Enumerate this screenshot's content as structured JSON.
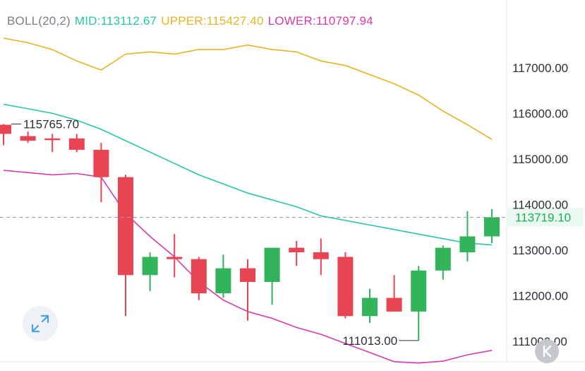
{
  "indicator": {
    "name": "BOLL(20,2)",
    "mid_label": "MID:113112.67",
    "upper_label": "UPPER:115427.40",
    "lower_label": "LOWER:110797.94",
    "colors": {
      "mid": "#26c6a6",
      "upper": "#e6b422",
      "lower": "#d63aad",
      "name": "#7c7f86"
    }
  },
  "icons": {
    "expand": "expand-arrows-icon",
    "kline": "k-chevron-icon"
  },
  "chart_data": {
    "type": "candlestick",
    "ylim": [
      110500,
      118100
    ],
    "y_ticks": [
      {
        "value": 117000,
        "label": "117000.00"
      },
      {
        "value": 116000,
        "label": "116000.00"
      },
      {
        "value": 115000,
        "label": "115000.00"
      },
      {
        "value": 114000,
        "label": "114000.00"
      },
      {
        "value": 113000,
        "label": "113000.00"
      },
      {
        "value": 112000,
        "label": "112000.00"
      },
      {
        "value": 111000,
        "label": "111000.00"
      }
    ],
    "current_price": {
      "value": 113719.1,
      "label": "113719.10",
      "color": "#16b05a"
    },
    "max_annotation": {
      "value": 115765.7,
      "label": "115765.70"
    },
    "min_annotation": {
      "value": 111013.0,
      "label": "111013.00"
    },
    "up_color": "#31b45a",
    "down_color": "#e84452",
    "candles": [
      {
        "o": 115750,
        "h": 115766,
        "c": 115550,
        "l": 115300
      },
      {
        "o": 115500,
        "h": 115600,
        "c": 115400,
        "l": 115350
      },
      {
        "o": 115450,
        "h": 115550,
        "c": 115430,
        "l": 115150
      },
      {
        "o": 115450,
        "h": 115550,
        "c": 115200,
        "l": 115150
      },
      {
        "o": 115200,
        "h": 115350,
        "c": 114600,
        "l": 114050
      },
      {
        "o": 114600,
        "h": 114650,
        "c": 112450,
        "l": 111550
      },
      {
        "o": 112450,
        "h": 112950,
        "c": 112850,
        "l": 112100
      },
      {
        "o": 112850,
        "h": 113350,
        "c": 112800,
        "l": 112400
      },
      {
        "o": 112800,
        "h": 112850,
        "c": 112050,
        "l": 111900
      },
      {
        "o": 112050,
        "h": 112900,
        "c": 112600,
        "l": 111950
      },
      {
        "o": 112600,
        "h": 112800,
        "c": 112300,
        "l": 111450
      },
      {
        "o": 112300,
        "h": 113050,
        "c": 113050,
        "l": 111800
      },
      {
        "o": 113050,
        "h": 113200,
        "c": 112950,
        "l": 112650
      },
      {
        "o": 112950,
        "h": 113250,
        "c": 112800,
        "l": 112450
      },
      {
        "o": 112850,
        "h": 112950,
        "c": 111550,
        "l": 111500
      },
      {
        "o": 111550,
        "h": 112150,
        "c": 111950,
        "l": 111400
      },
      {
        "o": 111950,
        "h": 112450,
        "c": 111650,
        "l": 111650
      },
      {
        "o": 111650,
        "h": 112650,
        "c": 112550,
        "l": 111013
      },
      {
        "o": 112550,
        "h": 113100,
        "c": 113050,
        "l": 112350
      },
      {
        "o": 112950,
        "h": 113850,
        "c": 113300,
        "l": 112750
      },
      {
        "o": 113300,
        "h": 113900,
        "c": 113719.1,
        "l": 113150
      }
    ],
    "upper_band": [
      117650,
      117550,
      117400,
      117150,
      116950,
      117300,
      117350,
      117300,
      117400,
      117400,
      117500,
      117400,
      117350,
      117150,
      117050,
      116850,
      116650,
      116400,
      116050,
      115750,
      115427.4
    ],
    "mid_band": [
      116200,
      116100,
      116000,
      115850,
      115650,
      115400,
      115150,
      114900,
      114650,
      114450,
      114250,
      114100,
      113950,
      113750,
      113650,
      113550,
      113450,
      113350,
      113250,
      113150,
      113112.67
    ],
    "lower_band": [
      114750,
      114700,
      114650,
      114680,
      114600,
      113800,
      113300,
      112850,
      112300,
      111900,
      111650,
      111500,
      111300,
      111150,
      110950,
      110750,
      110550,
      110520,
      110560,
      110700,
      110797.94
    ]
  }
}
